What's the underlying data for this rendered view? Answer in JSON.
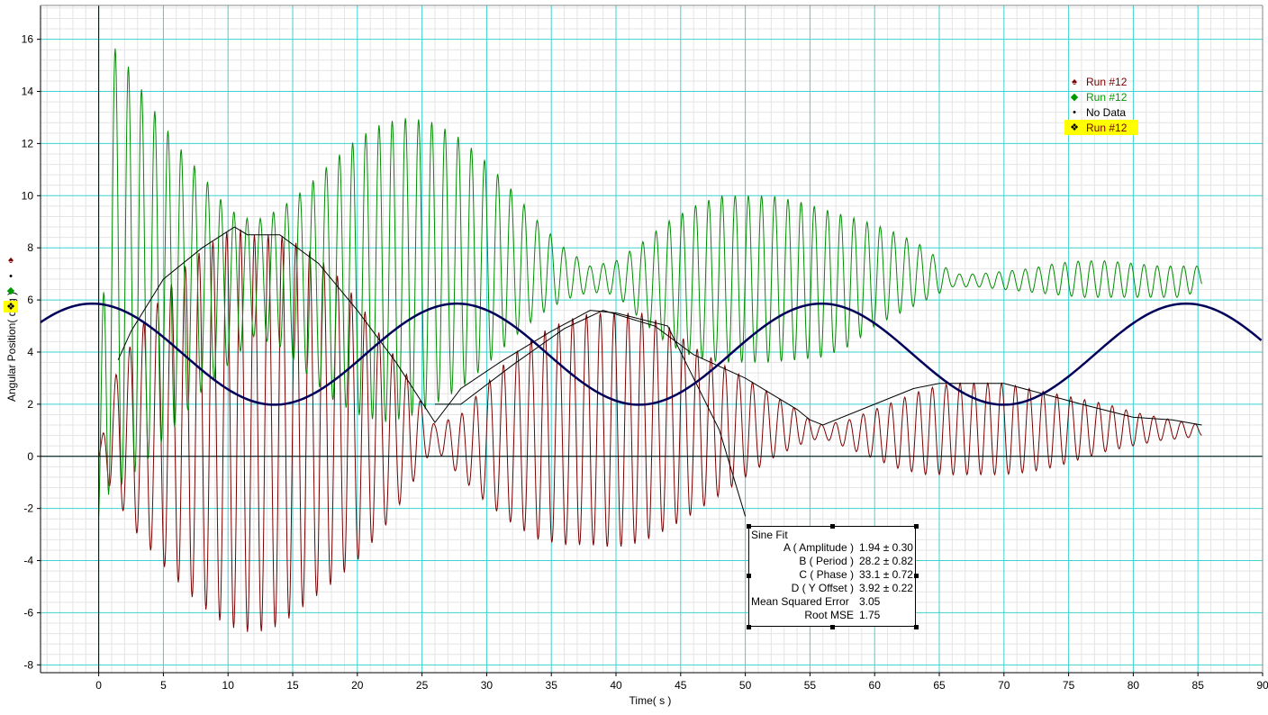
{
  "chart_data": {
    "type": "line",
    "xlabel": "Time( s )",
    "ylabel": "Angular Position( deg )",
    "xlim": [
      -4.5,
      90
    ],
    "ylim": [
      -8.3,
      17.3
    ],
    "xticks": [
      0,
      5,
      10,
      15,
      20,
      25,
      30,
      35,
      40,
      45,
      50,
      55,
      60,
      65,
      70,
      75,
      80,
      85,
      90
    ],
    "yticks": [
      -8,
      -6,
      -4,
      -2,
      0,
      2,
      4,
      6,
      8,
      10,
      12,
      14,
      16
    ],
    "grid": true,
    "legend_position": "top-right",
    "series": [
      {
        "name": "Run #12",
        "color": "#7a0000",
        "kind": "oscillation",
        "oscillation_period": 1.07,
        "x_range": [
          0,
          85.3
        ],
        "envelope_x": [
          0,
          1,
          3,
          5,
          7,
          9,
          10.5,
          12,
          14,
          16,
          18,
          20,
          22,
          24,
          25,
          26,
          28,
          30,
          32,
          34,
          36,
          38,
          40,
          42,
          44,
          46,
          48,
          50,
          52,
          54,
          55,
          56,
          58,
          60,
          62,
          64,
          66,
          68,
          70,
          72,
          74,
          76,
          78,
          80,
          82,
          84,
          85.3
        ],
        "envelope_upper": [
          0,
          2.8,
          4.8,
          6.2,
          7.5,
          8.3,
          8.8,
          8.5,
          8.5,
          8.0,
          7.2,
          6.0,
          4.5,
          3.0,
          2.0,
          1.2,
          1.6,
          2.8,
          3.9,
          4.7,
          5.2,
          5.5,
          5.5,
          5.5,
          5.0,
          4.2,
          3.6,
          3.0,
          2.4,
          1.8,
          1.4,
          1.2,
          1.4,
          1.8,
          2.2,
          2.6,
          2.8,
          2.8,
          2.8,
          2.6,
          2.4,
          2.2,
          2.0,
          1.7,
          1.5,
          1.3,
          1.2
        ],
        "envelope_lower": [
          0,
          -1.4,
          -3.0,
          -4.2,
          -5.3,
          -6.2,
          -6.6,
          -6.8,
          -6.5,
          -5.7,
          -4.9,
          -4.0,
          -2.8,
          -1.3,
          -0.3,
          0.3,
          -0.8,
          -1.8,
          -2.6,
          -3.2,
          -3.4,
          -3.4,
          -3.5,
          -3.3,
          -2.8,
          -2.2,
          -1.5,
          -0.8,
          -0.1,
          0.4,
          0.6,
          0.7,
          0.3,
          -0.1,
          -0.5,
          -0.7,
          -0.7,
          -0.7,
          -0.7,
          -0.6,
          -0.4,
          -0.1,
          0.2,
          0.4,
          0.6,
          0.7,
          0.8
        ]
      },
      {
        "name": "Run #12",
        "color": "#008c00",
        "kind": "oscillation",
        "oscillation_period": 1.02,
        "x_range": [
          0,
          85.3
        ],
        "envelope_x": [
          0,
          0.7,
          2,
          4,
          6,
          8,
          10,
          12,
          14,
          16,
          18,
          20,
          22,
          24,
          26,
          28,
          30,
          32,
          34,
          36,
          38,
          40,
          42,
          44,
          46,
          48,
          50,
          52,
          54,
          56,
          58,
          60,
          62,
          64,
          66,
          68,
          70,
          72,
          74,
          76,
          78,
          80,
          82,
          84,
          85.3
        ],
        "envelope_upper": [
          -2.3,
          16.0,
          15.2,
          13.5,
          12.0,
          10.8,
          9.5,
          9.0,
          9.5,
          10.3,
          11.3,
          12.2,
          12.8,
          13.0,
          12.8,
          12.2,
          11.3,
          10.2,
          9.0,
          8.0,
          7.3,
          7.5,
          8.2,
          9.0,
          9.6,
          10.0,
          10.0,
          10.0,
          9.8,
          9.5,
          9.2,
          8.9,
          8.5,
          8.0,
          7.0,
          7.0,
          7.1,
          7.2,
          7.4,
          7.5,
          7.5,
          7.4,
          7.3,
          7.3,
          7.3
        ],
        "envelope_lower": [
          -2.3,
          -1.5,
          -1.0,
          0.0,
          1.2,
          2.5,
          3.5,
          4.6,
          4.2,
          3.2,
          2.2,
          1.6,
          1.3,
          1.5,
          2.0,
          2.6,
          3.5,
          4.5,
          5.4,
          6.0,
          6.3,
          6.2,
          5.2,
          4.3,
          3.8,
          3.6,
          3.6,
          3.6,
          3.7,
          3.8,
          4.2,
          5.0,
          5.5,
          6.0,
          6.5,
          6.5,
          6.4,
          6.3,
          6.2,
          6.1,
          6.1,
          6.1,
          6.1,
          6.1,
          6.5
        ]
      },
      {
        "name": "Run #12",
        "color": "#000000",
        "kind": "peak_outline",
        "x": [
          1.5,
          2.5,
          5,
          8,
          10.5,
          11.5,
          14,
          17,
          20,
          23,
          26,
          28,
          31,
          35,
          38,
          40,
          44,
          48,
          50
        ],
        "y": [
          3.7,
          4.8,
          6.8,
          8.0,
          8.8,
          8.5,
          8.5,
          7.4,
          5.6,
          3.6,
          1.3,
          2.6,
          3.6,
          4.8,
          5.6,
          5.5,
          5.0,
          1.0,
          -2.3
        ]
      },
      {
        "name": "Run #12",
        "color": "#000000",
        "kind": "peak_outline",
        "x": [
          26,
          28,
          32,
          36,
          39,
          43,
          46,
          50,
          52,
          54,
          55,
          56,
          60,
          63,
          65,
          70,
          73,
          76,
          80,
          83,
          85.3
        ],
        "y": [
          2.0,
          2.0,
          3.5,
          4.9,
          5.6,
          5.0,
          3.9,
          3.0,
          2.4,
          1.8,
          1.4,
          1.2,
          2.0,
          2.6,
          2.8,
          2.8,
          2.4,
          2.0,
          1.5,
          1.4,
          1.2
        ]
      },
      {
        "name": "Sine Fit",
        "color": "#00005a",
        "kind": "sine",
        "amplitude": 1.94,
        "period": 28.2,
        "phase": 33.1,
        "y_offset": 3.92,
        "x_range": [
          -4.5,
          90
        ]
      }
    ],
    "legend": {
      "entries": [
        {
          "label": "Run #12",
          "symbol": "♠",
          "color": "#7a0000",
          "highlight": false
        },
        {
          "label": "Run #12",
          "symbol": "◆",
          "color": "#009900",
          "highlight": false
        },
        {
          "label": "No Data",
          "symbol": "•",
          "color": "#000000",
          "highlight": false
        },
        {
          "label": "Run #12",
          "symbol": "❖",
          "color": "#000000",
          "highlight": true
        }
      ]
    },
    "axis_markers": [
      {
        "symbol": "♠",
        "color": "#7a0000"
      },
      {
        "symbol": "•",
        "color": "#000000"
      },
      {
        "symbol": "◆",
        "color": "#009900"
      },
      {
        "symbol": "❖",
        "color": "#000000"
      }
    ],
    "fit_box": {
      "title": "Sine Fit",
      "rows": [
        {
          "label": "A ( Amplitude )",
          "value": "1.94 ± 0.30"
        },
        {
          "label": "B ( Period )",
          "value": "28.2 ± 0.82"
        },
        {
          "label": "C ( Phase )",
          "value": "33.1 ± 0.72"
        },
        {
          "label": "D ( Y Offset )",
          "value": "3.92 ± 0.22"
        },
        {
          "label": "Mean Squared Error",
          "value": "3.05"
        },
        {
          "label": "Root MSE",
          "value": "1.75"
        }
      ]
    },
    "colors": {
      "major_grid": "#3fd1d1",
      "minor_grid": "#e4e4e4",
      "axes": "#000000"
    }
  }
}
